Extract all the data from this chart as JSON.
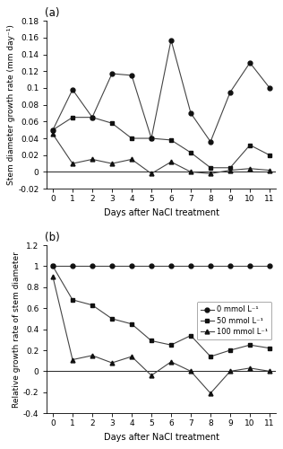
{
  "days": [
    0,
    1,
    2,
    3,
    4,
    5,
    6,
    7,
    8,
    9,
    10,
    11
  ],
  "panel_a": {
    "title": "(a)",
    "ylabel": "Stem diameter growth rate (mm day⁻¹)",
    "xlabel": "Days after NaCl treatment",
    "ylim": [
      -0.02,
      0.18
    ],
    "yticks": [
      0.0,
      0.02,
      0.04,
      0.06,
      0.08,
      0.1,
      0.12,
      0.14,
      0.16,
      0.18
    ],
    "series": {
      "0mmol": [
        0.05,
        0.098,
        0.065,
        0.117,
        0.115,
        0.04,
        0.157,
        0.07,
        0.036,
        0.095,
        0.13,
        0.1
      ],
      "50mmol": [
        0.05,
        0.065,
        0.065,
        0.058,
        0.04,
        0.04,
        0.038,
        0.023,
        0.005,
        0.005,
        0.032,
        0.02
      ],
      "100mmol": [
        0.045,
        0.01,
        0.015,
        0.01,
        0.015,
        -0.002,
        0.012,
        0.0,
        -0.002,
        0.002,
        0.004,
        0.002
      ]
    }
  },
  "panel_b": {
    "title": "(b)",
    "ylabel": "Relative growth rate of stem diameter",
    "xlabel": "Days after NaCl treatment",
    "ylim": [
      -0.4,
      1.2
    ],
    "yticks": [
      -0.4,
      -0.2,
      0.0,
      0.2,
      0.4,
      0.6,
      0.8,
      1.0,
      1.2
    ],
    "series": {
      "0mmol": [
        1.0,
        1.0,
        1.0,
        1.0,
        1.0,
        1.0,
        1.0,
        1.0,
        1.0,
        1.0,
        1.0,
        1.0
      ],
      "50mmol": [
        1.0,
        0.68,
        0.63,
        0.5,
        0.45,
        0.29,
        0.25,
        0.34,
        0.14,
        0.2,
        0.25,
        0.22
      ],
      "100mmol": [
        0.9,
        0.11,
        0.15,
        0.08,
        0.14,
        -0.04,
        0.09,
        0.0,
        -0.21,
        0.0,
        0.03,
        0.0
      ]
    },
    "legend_labels": [
      "0 mmol L⁻¹",
      "50 mmol L⁻¹",
      "100 mmol L⁻¹"
    ]
  },
  "marker_0": "o",
  "marker_50": "s",
  "marker_100": "^",
  "linecolor": "#444444",
  "markercolor": "#111111",
  "markersize": 3.5,
  "linewidth": 0.8
}
